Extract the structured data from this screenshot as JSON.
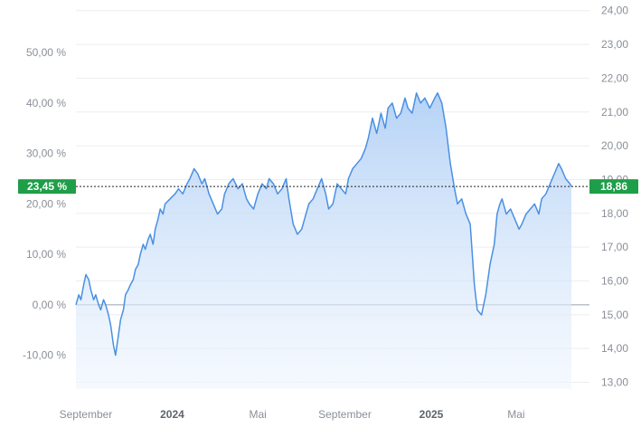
{
  "chart_data": {
    "type": "area",
    "title": "",
    "xlabel": "",
    "ylabel_left": "",
    "ylabel_right": "",
    "x_range": [
      "2023-08-18",
      "2025-07-18"
    ],
    "x_ticks": [
      {
        "date": "2023-09-01",
        "label": "September",
        "year": false
      },
      {
        "date": "2024-01-01",
        "label": "2024",
        "year": true
      },
      {
        "date": "2024-05-01",
        "label": "Mai",
        "year": false
      },
      {
        "date": "2024-09-01",
        "label": "September",
        "year": false
      },
      {
        "date": "2025-01-01",
        "label": "2025",
        "year": true
      },
      {
        "date": "2025-05-01",
        "label": "Mai",
        "year": false
      }
    ],
    "y_left": {
      "unit": "%",
      "range": [
        -16.7,
        59.0
      ],
      "ticks": [
        {
          "value": -10,
          "label": "-10,00 %"
        },
        {
          "value": 0,
          "label": "0,00 %"
        },
        {
          "value": 10,
          "label": "10,00 %"
        },
        {
          "value": 20,
          "label": "20,00 %"
        },
        {
          "value": 30,
          "label": "30,00 %"
        },
        {
          "value": 40,
          "label": "40,00 %"
        },
        {
          "value": 50,
          "label": "50,00 %"
        }
      ]
    },
    "y_right": {
      "range": [
        12.8,
        24.1
      ],
      "ticks": [
        {
          "value": 13,
          "label": "13,00"
        },
        {
          "value": 14,
          "label": "14,00"
        },
        {
          "value": 15,
          "label": "15,00"
        },
        {
          "value": 16,
          "label": "16,00"
        },
        {
          "value": 17,
          "label": "17,00"
        },
        {
          "value": 18,
          "label": "18,00"
        },
        {
          "value": 19,
          "label": "19,00"
        },
        {
          "value": 20,
          "label": "20,00"
        },
        {
          "value": 21,
          "label": "21,00"
        },
        {
          "value": 22,
          "label": "22,00"
        },
        {
          "value": 23,
          "label": "23,00"
        },
        {
          "value": 24,
          "label": "24,00"
        }
      ]
    },
    "grid": true,
    "legend": "none",
    "baseline_price": 15.28,
    "current": {
      "percent": 23.45,
      "percent_label": "23,45 %",
      "price": 18.86,
      "price_label": "18,86"
    },
    "series": [
      {
        "x": [
          "2023-08-18",
          "2023-08-22",
          "2023-08-25",
          "2023-08-29",
          "2023-09-01",
          "2023-09-05",
          "2023-09-08",
          "2023-09-12",
          "2023-09-15",
          "2023-09-19",
          "2023-09-22",
          "2023-09-26",
          "2023-09-29",
          "2023-10-03",
          "2023-10-06",
          "2023-10-10",
          "2023-10-13",
          "2023-10-17",
          "2023-10-20",
          "2023-10-24",
          "2023-10-27",
          "2023-10-31",
          "2023-11-03",
          "2023-11-07",
          "2023-11-10",
          "2023-11-14",
          "2023-11-17",
          "2023-11-21",
          "2023-11-24",
          "2023-11-28",
          "2023-12-01",
          "2023-12-05",
          "2023-12-08",
          "2023-12-12",
          "2023-12-15",
          "2023-12-19",
          "2023-12-22",
          "2023-12-29",
          "2024-01-05",
          "2024-01-10",
          "2024-01-16",
          "2024-01-22",
          "2024-01-26",
          "2024-02-01",
          "2024-02-06",
          "2024-02-12",
          "2024-02-16",
          "2024-02-22",
          "2024-02-28",
          "2024-03-05",
          "2024-03-11",
          "2024-03-15",
          "2024-03-21",
          "2024-03-27",
          "2024-04-03",
          "2024-04-09",
          "2024-04-15",
          "2024-04-19",
          "2024-04-25",
          "2024-05-01",
          "2024-05-07",
          "2024-05-13",
          "2024-05-17",
          "2024-05-23",
          "2024-05-29",
          "2024-06-04",
          "2024-06-10",
          "2024-06-14",
          "2024-06-20",
          "2024-06-26",
          "2024-07-02",
          "2024-07-08",
          "2024-07-12",
          "2024-07-18",
          "2024-07-24",
          "2024-07-30",
          "2024-08-05",
          "2024-08-09",
          "2024-08-15",
          "2024-08-21",
          "2024-08-27",
          "2024-09-02",
          "2024-09-06",
          "2024-09-12",
          "2024-09-18",
          "2024-09-24",
          "2024-09-30",
          "2024-10-04",
          "2024-10-10",
          "2024-10-16",
          "2024-10-22",
          "2024-10-28",
          "2024-11-01",
          "2024-11-07",
          "2024-11-13",
          "2024-11-19",
          "2024-11-25",
          "2024-11-29",
          "2024-12-05",
          "2024-12-11",
          "2024-12-17",
          "2024-12-23",
          "2024-12-30",
          "2025-01-06",
          "2025-01-10",
          "2025-01-16",
          "2025-01-22",
          "2025-01-28",
          "2025-02-03",
          "2025-02-07",
          "2025-02-13",
          "2025-02-19",
          "2025-02-25",
          "2025-03-03",
          "2025-03-07",
          "2025-03-13",
          "2025-03-19",
          "2025-03-25",
          "2025-03-31",
          "2025-04-04",
          "2025-04-08",
          "2025-04-11",
          "2025-04-17",
          "2025-04-23",
          "2025-04-29",
          "2025-05-05",
          "2025-05-09",
          "2025-05-15",
          "2025-05-21",
          "2025-05-27",
          "2025-06-02",
          "2025-06-06",
          "2025-06-12",
          "2025-06-18",
          "2025-06-24",
          "2025-06-30",
          "2025-07-04",
          "2025-07-10",
          "2025-07-16",
          "2025-07-18"
        ],
        "y": [
          0,
          2,
          1,
          4,
          6,
          5,
          3,
          1,
          2,
          0,
          -1,
          1,
          0,
          -2,
          -4,
          -8,
          -10,
          -6,
          -3,
          -1,
          2,
          3,
          4,
          5,
          7,
          8,
          10,
          12,
          11,
          13,
          14,
          12,
          15,
          17,
          19,
          18,
          20,
          21,
          22,
          23,
          22,
          24,
          25,
          27,
          26,
          24,
          25,
          22,
          20,
          18,
          19,
          22,
          24,
          25,
          23,
          24,
          21,
          20,
          19,
          22,
          24,
          23,
          25,
          24,
          22,
          23,
          25,
          21,
          16,
          14,
          15,
          18,
          20,
          21,
          23,
          25,
          22,
          19,
          20,
          24,
          23,
          22,
          25,
          27,
          28,
          29,
          31,
          33,
          37,
          34,
          38,
          35,
          39,
          40,
          37,
          38,
          41,
          39,
          38,
          42,
          40,
          41,
          39,
          41,
          42,
          40,
          35,
          28,
          23,
          20,
          21,
          18,
          16,
          4,
          -1,
          -2,
          2,
          8,
          12,
          18,
          20,
          21,
          18,
          19,
          17,
          15,
          16,
          18,
          19,
          20,
          18,
          21,
          22,
          24,
          26,
          28,
          27,
          25,
          24,
          23.45
        ]
      }
    ]
  }
}
